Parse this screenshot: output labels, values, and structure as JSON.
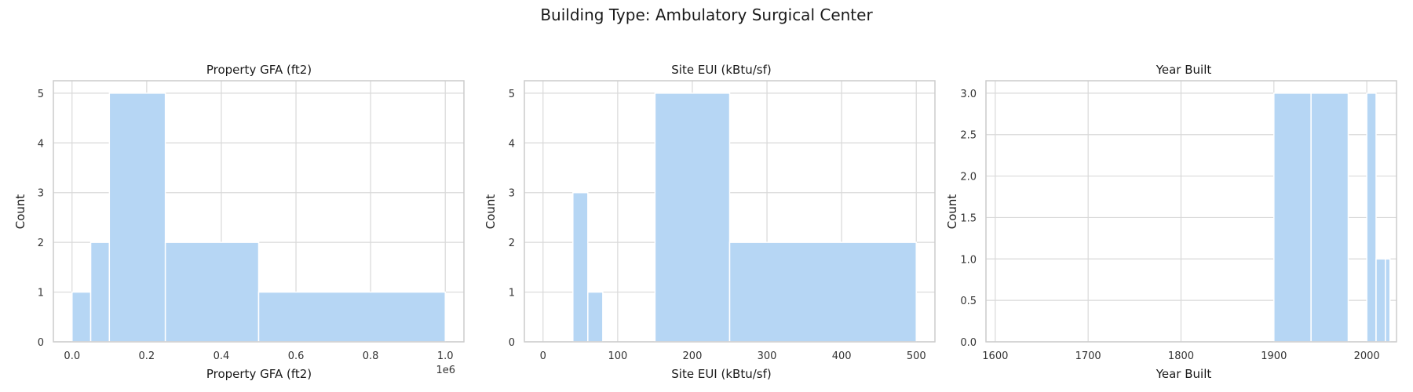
{
  "figure_title": "Building Type: Ambulatory Surgical Center",
  "colors": {
    "bar": "#b6d6f4",
    "bar_edge": "#ffffff",
    "grid": "#d9d9d9",
    "frame": "#cccccc"
  },
  "chart_data": [
    {
      "type": "bar",
      "title": "Property GFA (ft2)",
      "xlabel": "Property GFA (ft2)",
      "ylabel": "Count",
      "xlim": [
        -50000,
        1050000
      ],
      "ylim": [
        0,
        5.25
      ],
      "xticks": [
        0,
        200000,
        400000,
        600000,
        800000,
        1000000
      ],
      "xtick_labels": [
        "0.0",
        "0.2",
        "0.4",
        "0.6",
        "0.8",
        "1.0"
      ],
      "offset_label": "1e6",
      "yticks": [
        0,
        1,
        2,
        3,
        4,
        5
      ],
      "ytick_labels": [
        "0",
        "1",
        "2",
        "3",
        "4",
        "5"
      ],
      "grid": true,
      "bins": [
        {
          "x0": 0,
          "x1": 50000,
          "count": 1
        },
        {
          "x0": 50000,
          "x1": 100000,
          "count": 2
        },
        {
          "x0": 100000,
          "x1": 250000,
          "count": 5
        },
        {
          "x0": 250000,
          "x1": 500000,
          "count": 2
        },
        {
          "x0": 500000,
          "x1": 1000000,
          "count": 1
        }
      ]
    },
    {
      "type": "bar",
      "title": "Site EUI (kBtu/sf)",
      "xlabel": "Site EUI (kBtu/sf)",
      "ylabel": "Count",
      "xlim": [
        -25,
        525
      ],
      "ylim": [
        0,
        5.25
      ],
      "xticks": [
        0,
        100,
        200,
        300,
        400,
        500
      ],
      "xtick_labels": [
        "0",
        "100",
        "200",
        "300",
        "400",
        "500"
      ],
      "offset_label": "",
      "yticks": [
        0,
        1,
        2,
        3,
        4,
        5
      ],
      "ytick_labels": [
        "0",
        "1",
        "2",
        "3",
        "4",
        "5"
      ],
      "grid": true,
      "bins": [
        {
          "x0": 0,
          "x1": 40,
          "count": 0
        },
        {
          "x0": 40,
          "x1": 60,
          "count": 3
        },
        {
          "x0": 60,
          "x1": 80,
          "count": 1
        },
        {
          "x0": 80,
          "x1": 150,
          "count": 0
        },
        {
          "x0": 150,
          "x1": 250,
          "count": 5
        },
        {
          "x0": 250,
          "x1": 500,
          "count": 2
        }
      ]
    },
    {
      "type": "bar",
      "title": "Year Built",
      "xlabel": "Year Built",
      "ylabel": "Count",
      "xlim": [
        1590,
        2032
      ],
      "ylim": [
        0,
        3.15
      ],
      "xticks": [
        1600,
        1700,
        1800,
        1900,
        2000
      ],
      "xtick_labels": [
        "1600",
        "1700",
        "1800",
        "1900",
        "2000"
      ],
      "offset_label": "",
      "yticks": [
        0,
        0.5,
        1.0,
        1.5,
        2.0,
        2.5,
        3.0
      ],
      "ytick_labels": [
        "0.0",
        "0.5",
        "1.0",
        "1.5",
        "2.0",
        "2.5",
        "3.0"
      ],
      "grid": true,
      "bins": [
        {
          "x0": 1600,
          "x1": 1900,
          "count": 0
        },
        {
          "x0": 1900,
          "x1": 1940,
          "count": 3
        },
        {
          "x0": 1940,
          "x1": 1980,
          "count": 3
        },
        {
          "x0": 1980,
          "x1": 2000,
          "count": 0
        },
        {
          "x0": 2000,
          "x1": 2010,
          "count": 3
        },
        {
          "x0": 2010,
          "x1": 2020,
          "count": 1
        },
        {
          "x0": 2020,
          "x1": 2025,
          "count": 1
        }
      ]
    }
  ]
}
